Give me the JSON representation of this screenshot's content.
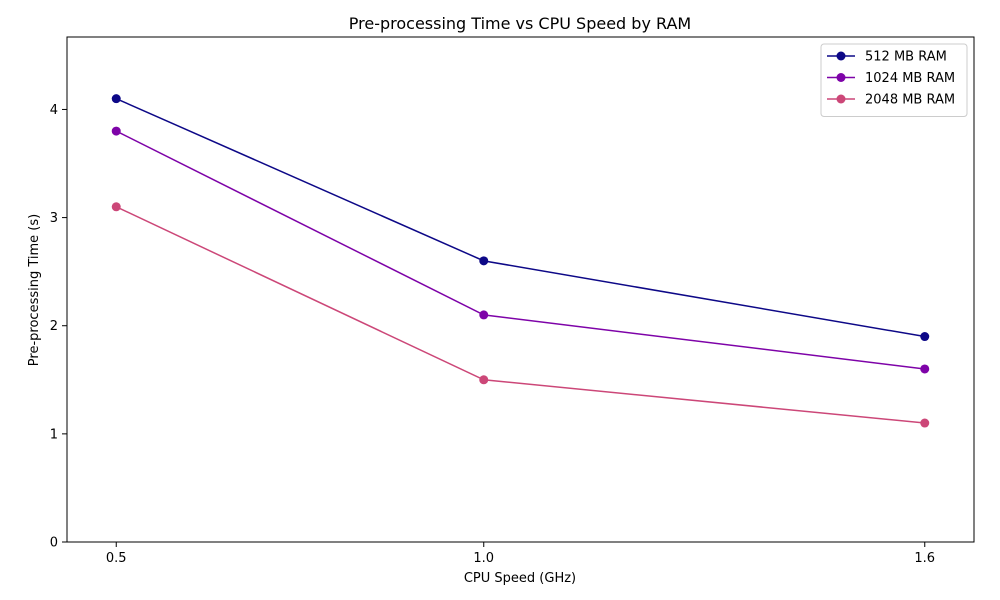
{
  "chart_data": {
    "type": "line",
    "title": "Pre-processing Time vs CPU Speed by RAM",
    "xlabel": "CPU Speed (GHz)",
    "ylabel": "Pre-processing Time (s)",
    "x": [
      0.5,
      1.0,
      1.6
    ],
    "x_tick_labels": [
      "0.5",
      "1.0",
      "1.6"
    ],
    "xlim": [
      0.433,
      1.667
    ],
    "ylim": [
      0,
      4.67
    ],
    "y_ticks": [
      0,
      1,
      2,
      3,
      4
    ],
    "grid": false,
    "legend_position": "top-right",
    "series": [
      {
        "name": "512 MB RAM",
        "color": "#0d0887",
        "values": [
          4.1,
          2.6,
          1.9
        ]
      },
      {
        "name": "1024 MB RAM",
        "color": "#7e03a8",
        "values": [
          3.8,
          2.1,
          1.6
        ]
      },
      {
        "name": "2048 MB RAM",
        "color": "#cc4778",
        "values": [
          3.1,
          1.5,
          1.1
        ]
      }
    ]
  }
}
